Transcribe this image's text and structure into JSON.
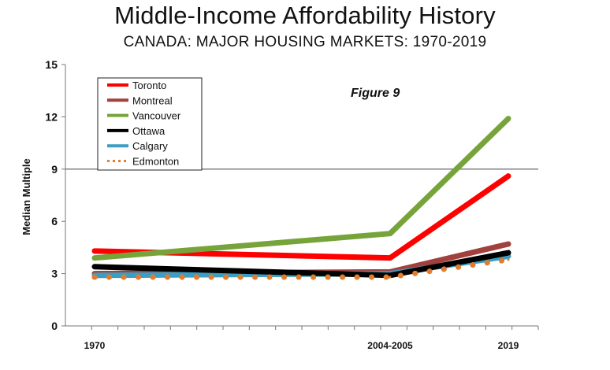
{
  "chart_data": {
    "type": "line",
    "title": "Middle-Income Affordability History",
    "subtitle": "CANADA: MAJOR HOUSING MARKETS: 1970-2019",
    "ylabel": "Median Multiple",
    "xlabel": "",
    "annotation": "Figure 9",
    "ylim": [
      0,
      15
    ],
    "yticks": [
      0,
      3,
      6,
      9,
      12,
      15
    ],
    "reference_line": 9,
    "x": [
      "1970",
      "2004-2005",
      "2019"
    ],
    "x_tick_labels": [
      "1970",
      "2004-2005",
      "2019"
    ],
    "legend_position": "top-left",
    "series": [
      {
        "name": "Toronto",
        "values": [
          4.3,
          3.9,
          8.6
        ],
        "color": "#ff0000",
        "style": "solid"
      },
      {
        "name": "Montreal",
        "values": [
          3.0,
          3.1,
          4.7
        ],
        "color": "#a0413e",
        "style": "solid"
      },
      {
        "name": "Vancouver",
        "values": [
          3.9,
          5.3,
          11.9
        ],
        "color": "#77a43a",
        "style": "solid"
      },
      {
        "name": "Ottawa",
        "values": [
          3.4,
          2.9,
          4.2
        ],
        "color": "#000000",
        "style": "solid"
      },
      {
        "name": "Calgary",
        "values": [
          2.9,
          3.0,
          4.0
        ],
        "color": "#3b9ec2",
        "style": "solid"
      },
      {
        "name": "Edmonton",
        "values": [
          2.8,
          2.8,
          3.8
        ],
        "color": "#e07d2f",
        "style": "dotted"
      }
    ]
  }
}
